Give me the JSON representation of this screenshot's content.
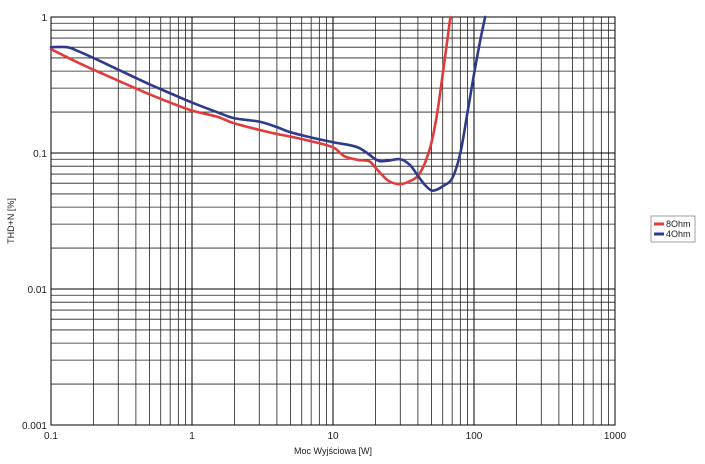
{
  "chart_data": {
    "type": "line",
    "title": "",
    "xlabel": "Moc Wyjściowa [W]",
    "ylabel": "THD+N [%]",
    "x_scale": "log",
    "y_scale": "log",
    "xlim": [
      0.1,
      1000
    ],
    "ylim": [
      0.001,
      1
    ],
    "x_tick_labels": [
      "0.1",
      "1",
      "10",
      "100",
      "1000"
    ],
    "x_tick_values": [
      0.1,
      1,
      10,
      100,
      1000
    ],
    "y_tick_labels": [
      "0.001",
      "0.01",
      "0.1",
      "1"
    ],
    "y_tick_values": [
      0.001,
      0.01,
      0.1,
      1
    ],
    "grid": true,
    "legend_position": "right",
    "series": [
      {
        "name": "8Ohm",
        "color": "#e03c3c",
        "x": [
          0.1,
          0.15,
          0.2,
          0.3,
          0.5,
          0.7,
          1,
          1.5,
          2,
          3,
          4,
          5,
          7,
          10,
          12,
          15,
          18,
          20,
          22,
          25,
          30,
          35,
          40,
          45,
          50,
          55,
          60,
          65,
          68
        ],
        "y": [
          0.58,
          0.47,
          0.41,
          0.34,
          0.27,
          0.235,
          0.205,
          0.185,
          0.165,
          0.148,
          0.138,
          0.132,
          0.122,
          0.11,
          0.095,
          0.089,
          0.087,
          0.078,
          0.07,
          0.062,
          0.059,
          0.062,
          0.068,
          0.085,
          0.12,
          0.2,
          0.38,
          0.7,
          1.0
        ]
      },
      {
        "name": "4Ohm",
        "color": "#2e3a8c",
        "x": [
          0.1,
          0.13,
          0.15,
          0.2,
          0.3,
          0.5,
          0.7,
          1,
          1.5,
          2,
          3,
          4,
          5,
          7,
          10,
          15,
          20,
          22,
          25,
          30,
          35,
          40,
          45,
          50,
          55,
          60,
          70,
          80,
          90,
          100,
          110,
          120
        ],
        "y": [
          0.6,
          0.6,
          0.57,
          0.5,
          0.41,
          0.32,
          0.275,
          0.235,
          0.2,
          0.18,
          0.17,
          0.155,
          0.142,
          0.13,
          0.12,
          0.11,
          0.09,
          0.087,
          0.088,
          0.09,
          0.082,
          0.068,
          0.058,
          0.053,
          0.054,
          0.057,
          0.065,
          0.1,
          0.2,
          0.38,
          0.65,
          1.0
        ]
      }
    ]
  }
}
